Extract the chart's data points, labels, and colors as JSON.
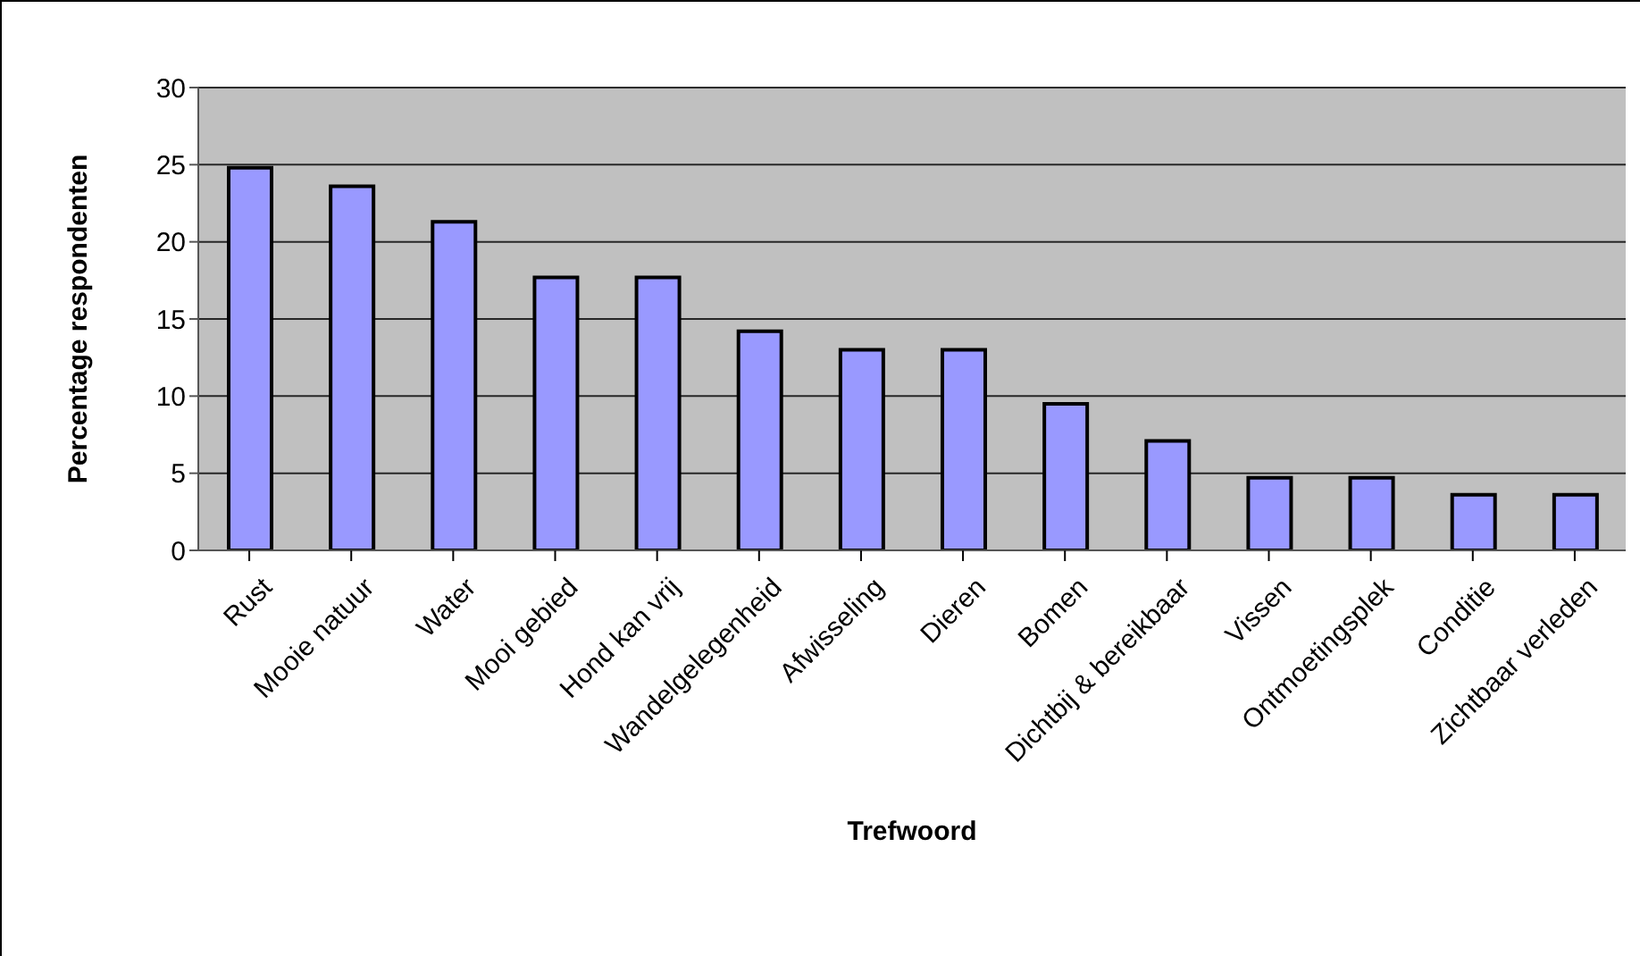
{
  "chart_data": {
    "type": "bar",
    "xlabel": "Trefwoord",
    "ylabel": "Percentage respondenten",
    "categories": [
      "Rust",
      "Mooie natuur",
      "Water",
      "Mooi gebied",
      "Hond kan vrij",
      "Wandelgelegenheid",
      "Afwisseling",
      "Dieren",
      "Bomen",
      "Dichtbij & bereikbaar",
      "Vissen",
      "Ontmoetingsplek",
      "Conditie",
      "Zichtbaar verleden"
    ],
    "values": [
      24.8,
      23.6,
      21.3,
      17.7,
      17.7,
      14.2,
      13.0,
      13.0,
      9.5,
      7.1,
      4.7,
      4.7,
      3.6,
      3.6
    ],
    "color": "#9999ff",
    "ylim": [
      0,
      30
    ],
    "yticks": [
      0,
      5,
      10,
      15,
      20,
      25,
      30
    ],
    "grid": "y"
  }
}
